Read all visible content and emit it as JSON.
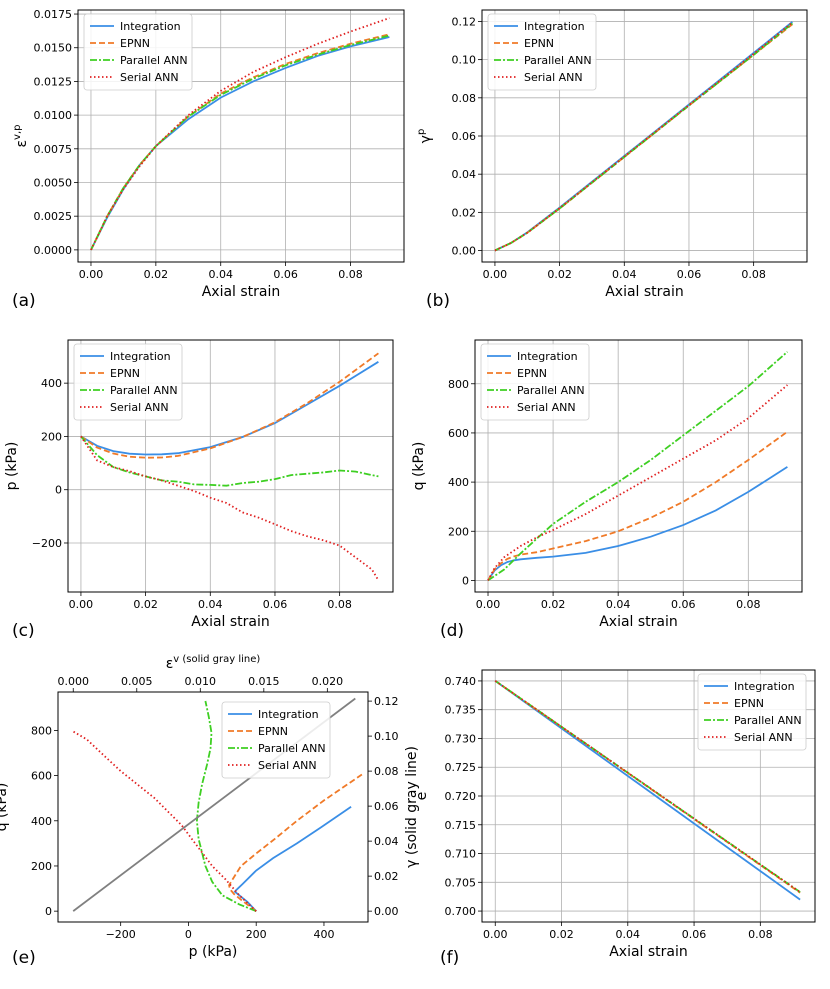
{
  "series_styles": [
    {
      "name": "Integration",
      "color": "#3a8ee6",
      "dash": "",
      "width": 1.8
    },
    {
      "name": "EPNN",
      "color": "#f07a28",
      "dash": "6,3",
      "width": 1.8
    },
    {
      "name": "Parallel ANN",
      "color": "#3ecf22",
      "dash": "7,2,2,2",
      "width": 1.8
    },
    {
      "name": "Serial ANN",
      "color": "#e02020",
      "dash": "1.5,2.5",
      "width": 1.8
    }
  ],
  "chart_data": [
    {
      "label": "(a)",
      "type": "line",
      "xlabel": "Axial strain",
      "ylabel": "ε^{v,p}",
      "xlim": [
        -0.004,
        0.0965
      ],
      "ylim": [
        -0.0009,
        0.0178
      ],
      "xticks": [
        "0.00",
        "0.02",
        "0.04",
        "0.06",
        "0.08"
      ],
      "xtick_values": [
        0,
        0.02,
        0.04,
        0.06,
        0.08
      ],
      "yticks": [
        "0.0000",
        "0.0025",
        "0.0050",
        "0.0075",
        "0.0100",
        "0.0125",
        "0.0150",
        "0.0175"
      ],
      "ytick_values": [
        0,
        0.0025,
        0.005,
        0.0075,
        0.01,
        0.0125,
        0.015,
        0.0175
      ],
      "legend_position": "top-left",
      "grid": true,
      "series": [
        {
          "name": "Integration",
          "x": [
            0,
            0.005,
            0.01,
            0.015,
            0.02,
            0.03,
            0.04,
            0.05,
            0.06,
            0.07,
            0.08,
            0.092
          ],
          "y": [
            0,
            0.0024,
            0.0045,
            0.0063,
            0.0077,
            0.0097,
            0.0113,
            0.0125,
            0.0135,
            0.0144,
            0.0151,
            0.0158
          ]
        },
        {
          "name": "EPNN",
          "x": [
            0,
            0.005,
            0.01,
            0.015,
            0.02,
            0.03,
            0.04,
            0.05,
            0.06,
            0.07,
            0.08,
            0.092
          ],
          "y": [
            0,
            0.0025,
            0.0046,
            0.0063,
            0.0077,
            0.0099,
            0.0116,
            0.0128,
            0.0138,
            0.0146,
            0.0153,
            0.016
          ]
        },
        {
          "name": "Parallel ANN",
          "x": [
            0,
            0.005,
            0.01,
            0.015,
            0.02,
            0.03,
            0.04,
            0.05,
            0.06,
            0.07,
            0.08,
            0.092
          ],
          "y": [
            0,
            0.0025,
            0.0046,
            0.0063,
            0.0077,
            0.0099,
            0.0115,
            0.0127,
            0.0137,
            0.0145,
            0.0152,
            0.0159
          ]
        },
        {
          "name": "Serial ANN",
          "x": [
            0,
            0.005,
            0.01,
            0.015,
            0.02,
            0.03,
            0.04,
            0.05,
            0.06,
            0.07,
            0.08,
            0.092
          ],
          "y": [
            0,
            0.0025,
            0.0045,
            0.0062,
            0.0077,
            0.01,
            0.0118,
            0.0132,
            0.0143,
            0.0153,
            0.0162,
            0.0172
          ]
        }
      ]
    },
    {
      "label": "(b)",
      "type": "line",
      "xlabel": "Axial strain",
      "ylabel": "γ^p",
      "xlim": [
        -0.004,
        0.0965
      ],
      "ylim": [
        -0.006,
        0.126
      ],
      "xticks": [
        "0.00",
        "0.02",
        "0.04",
        "0.06",
        "0.08"
      ],
      "xtick_values": [
        0,
        0.02,
        0.04,
        0.06,
        0.08
      ],
      "yticks": [
        "0.00",
        "0.02",
        "0.04",
        "0.06",
        "0.08",
        "0.10",
        "0.12"
      ],
      "ytick_values": [
        0,
        0.02,
        0.04,
        0.06,
        0.08,
        0.1,
        0.12
      ],
      "legend_position": "top-left",
      "grid": true,
      "series": [
        {
          "name": "Integration",
          "x": [
            0,
            0.005,
            0.01,
            0.02,
            0.04,
            0.06,
            0.08,
            0.092
          ],
          "y": [
            0,
            0.004,
            0.0095,
            0.0225,
            0.0495,
            0.0765,
            0.1035,
            0.1198
          ]
        },
        {
          "name": "EPNN",
          "x": [
            0,
            0.005,
            0.01,
            0.02,
            0.04,
            0.06,
            0.08,
            0.092
          ],
          "y": [
            0,
            0.004,
            0.0093,
            0.022,
            0.049,
            0.076,
            0.1025,
            0.1185
          ]
        },
        {
          "name": "Parallel ANN",
          "x": [
            0,
            0.005,
            0.01,
            0.02,
            0.04,
            0.06,
            0.08,
            0.092
          ],
          "y": [
            0,
            0.004,
            0.0093,
            0.022,
            0.049,
            0.076,
            0.1025,
            0.119
          ]
        },
        {
          "name": "Serial ANN",
          "x": [
            0,
            0.005,
            0.01,
            0.02,
            0.04,
            0.06,
            0.08,
            0.092
          ],
          "y": [
            0,
            0.004,
            0.0093,
            0.0222,
            0.0492,
            0.0762,
            0.103,
            0.1195
          ]
        }
      ]
    },
    {
      "label": "(c)",
      "type": "line",
      "xlabel": "Axial strain",
      "ylabel": "p (kPa)",
      "xlim": [
        -0.004,
        0.0965
      ],
      "ylim": [
        -384,
        562
      ],
      "xticks": [
        "0.00",
        "0.02",
        "0.04",
        "0.06",
        "0.08"
      ],
      "xtick_values": [
        0,
        0.02,
        0.04,
        0.06,
        0.08
      ],
      "yticks": [
        "−200",
        "0",
        "200",
        "400"
      ],
      "ytick_values": [
        -200,
        0,
        200,
        400
      ],
      "legend_position": "top-left",
      "grid": true,
      "series": [
        {
          "name": "Integration",
          "x": [
            0,
            0.005,
            0.01,
            0.015,
            0.02,
            0.025,
            0.03,
            0.04,
            0.05,
            0.06,
            0.07,
            0.08,
            0.092
          ],
          "y": [
            200,
            165,
            145,
            135,
            132,
            133,
            137,
            160,
            198,
            250,
            320,
            390,
            480
          ]
        },
        {
          "name": "EPNN",
          "x": [
            0,
            0.005,
            0.01,
            0.015,
            0.02,
            0.025,
            0.03,
            0.04,
            0.05,
            0.06,
            0.07,
            0.08,
            0.092
          ],
          "y": [
            200,
            158,
            136,
            124,
            120,
            121,
            127,
            155,
            198,
            253,
            325,
            405,
            512
          ]
        },
        {
          "name": "Parallel ANN",
          "x": [
            0,
            0.005,
            0.01,
            0.015,
            0.02,
            0.025,
            0.03,
            0.035,
            0.04,
            0.045,
            0.05,
            0.055,
            0.06,
            0.065,
            0.07,
            0.075,
            0.08,
            0.085,
            0.09,
            0.092
          ],
          "y": [
            200,
            130,
            85,
            65,
            50,
            35,
            30,
            20,
            18,
            15,
            25,
            30,
            40,
            55,
            60,
            65,
            72,
            68,
            55,
            50
          ]
        },
        {
          "name": "Serial ANN",
          "x": [
            0,
            0.005,
            0.01,
            0.015,
            0.02,
            0.025,
            0.03,
            0.035,
            0.04,
            0.045,
            0.05,
            0.055,
            0.06,
            0.065,
            0.07,
            0.075,
            0.08,
            0.085,
            0.09,
            0.092
          ],
          "y": [
            200,
            110,
            85,
            70,
            50,
            35,
            15,
            -5,
            -30,
            -50,
            -85,
            -105,
            -130,
            -155,
            -175,
            -190,
            -210,
            -255,
            -300,
            -340
          ]
        }
      ]
    },
    {
      "label": "(d)",
      "type": "line",
      "xlabel": "Axial strain",
      "ylabel": "q (kPa)",
      "xlim": [
        -0.004,
        0.0965
      ],
      "ylim": [
        -47,
        978
      ],
      "xticks": [
        "0.00",
        "0.02",
        "0.04",
        "0.06",
        "0.08"
      ],
      "xtick_values": [
        0,
        0.02,
        0.04,
        0.06,
        0.08
      ],
      "yticks": [
        "0",
        "200",
        "400",
        "600",
        "800"
      ],
      "ytick_values": [
        0,
        200,
        400,
        600,
        800
      ],
      "legend_position": "top-left",
      "grid": true,
      "series": [
        {
          "name": "Integration",
          "x": [
            0,
            0.002,
            0.004,
            0.006,
            0.008,
            0.01,
            0.015,
            0.02,
            0.03,
            0.04,
            0.05,
            0.06,
            0.07,
            0.08,
            0.092
          ],
          "y": [
            0,
            40,
            62,
            75,
            82,
            86,
            92,
            97,
            112,
            140,
            178,
            225,
            285,
            360,
            462
          ]
        },
        {
          "name": "EPNN",
          "x": [
            0,
            0.002,
            0.004,
            0.006,
            0.008,
            0.01,
            0.015,
            0.02,
            0.03,
            0.04,
            0.05,
            0.06,
            0.07,
            0.08,
            0.092
          ],
          "y": [
            0,
            45,
            70,
            88,
            98,
            105,
            115,
            130,
            160,
            200,
            255,
            320,
            400,
            490,
            605
          ]
        },
        {
          "name": "Parallel ANN",
          "x": [
            0,
            0.005,
            0.01,
            0.015,
            0.02,
            0.03,
            0.04,
            0.05,
            0.06,
            0.07,
            0.08,
            0.092
          ],
          "y": [
            0,
            45,
            110,
            170,
            230,
            320,
            400,
            490,
            590,
            690,
            790,
            930
          ]
        },
        {
          "name": "Serial ANN",
          "x": [
            0,
            0.002,
            0.005,
            0.01,
            0.015,
            0.02,
            0.03,
            0.04,
            0.05,
            0.06,
            0.07,
            0.08,
            0.092
          ],
          "y": [
            0,
            50,
            95,
            140,
            175,
            205,
            270,
            345,
            420,
            495,
            570,
            660,
            795
          ]
        }
      ]
    },
    {
      "label": "(e)",
      "type": "line",
      "xlabel": "p (kPa)",
      "ylabel": "q (kPa)",
      "xlabel_top": "ε^v  (solid gray line)",
      "ylabel_right": "γ  (solid gray line)",
      "xlim": [
        -385,
        530
      ],
      "ylim": [
        -48,
        970
      ],
      "xticks": [
        "−200",
        "0",
        "200",
        "400"
      ],
      "xtick_values": [
        -200,
        0,
        200,
        400
      ],
      "yticks": [
        "0",
        "200",
        "400",
        "600",
        "800"
      ],
      "ytick_values": [
        0,
        200,
        400,
        600,
        800
      ],
      "x2lim": [
        -0.0012,
        0.0232
      ],
      "x2ticks": [
        "0.000",
        "0.005",
        "0.010",
        "0.015",
        "0.020"
      ],
      "x2tick_values": [
        0,
        0.005,
        0.01,
        0.015,
        0.02
      ],
      "y2lim": [
        -0.0062,
        0.1252
      ],
      "y2ticks": [
        "0.00",
        "0.02",
        "0.04",
        "0.06",
        "0.08",
        "0.10",
        "0.12"
      ],
      "y2tick_values": [
        0,
        0.02,
        0.04,
        0.06,
        0.08,
        0.1,
        0.12
      ],
      "legend_position": "top-right",
      "grid": false,
      "series": [
        {
          "name": "Integration",
          "x": [
            200,
            175,
            150,
            137,
            140,
            160,
            200,
            250,
            320,
            390,
            480
          ],
          "y": [
            0,
            40,
            70,
            86,
            92,
            120,
            180,
            235,
            300,
            370,
            462
          ]
        },
        {
          "name": "EPNN",
          "x": [
            200,
            160,
            135,
            122,
            120,
            130,
            155,
            200,
            255,
            320,
            400,
            512
          ],
          "y": [
            0,
            45,
            75,
            98,
            115,
            140,
            200,
            255,
            320,
            400,
            490,
            605
          ]
        },
        {
          "name": "Parallel ANN",
          "x": [
            200,
            150,
            100,
            70,
            50,
            40,
            30,
            25,
            30,
            40,
            55,
            65,
            68,
            60,
            50
          ],
          "y": [
            0,
            30,
            70,
            130,
            200,
            260,
            320,
            400,
            480,
            560,
            650,
            720,
            790,
            860,
            930
          ]
        },
        {
          "name": "Serial ANN",
          "x": [
            200,
            150,
            110,
            70,
            40,
            10,
            -20,
            -60,
            -100,
            -150,
            -200,
            -250,
            -300,
            -340
          ],
          "y": [
            0,
            70,
            140,
            200,
            260,
            320,
            380,
            440,
            500,
            560,
            620,
            690,
            760,
            795
          ]
        },
        {
          "name": "ε^v vs γ",
          "color": "#808080",
          "x_secondary": [
            0,
            0.0222
          ],
          "y_secondary": [
            0,
            0.1215
          ]
        }
      ]
    },
    {
      "label": "(f)",
      "type": "line",
      "xlabel": "Axial strain",
      "ylabel": "e",
      "xlim": [
        -0.004,
        0.0965
      ],
      "ylim": [
        0.6981,
        0.7419
      ],
      "xticks": [
        "0.00",
        "0.02",
        "0.04",
        "0.06",
        "0.08"
      ],
      "xtick_values": [
        0,
        0.02,
        0.04,
        0.06,
        0.08
      ],
      "yticks": [
        "0.700",
        "0.705",
        "0.710",
        "0.715",
        "0.720",
        "0.725",
        "0.730",
        "0.735",
        "0.740"
      ],
      "ytick_values": [
        0.7,
        0.705,
        0.71,
        0.715,
        0.72,
        0.725,
        0.73,
        0.735,
        0.74
      ],
      "legend_position": "top-right",
      "grid": true,
      "series": [
        {
          "name": "Integration",
          "x": [
            0,
            0.092
          ],
          "y": [
            0.74,
            0.702
          ]
        },
        {
          "name": "EPNN",
          "x": [
            0,
            0.092
          ],
          "y": [
            0.74,
            0.7032
          ]
        },
        {
          "name": "Parallel ANN",
          "x": [
            0,
            0.092
          ],
          "y": [
            0.74,
            0.7033
          ]
        },
        {
          "name": "Serial ANN",
          "x": [
            0,
            0.092
          ],
          "y": [
            0.74,
            0.7033
          ]
        }
      ]
    }
  ]
}
